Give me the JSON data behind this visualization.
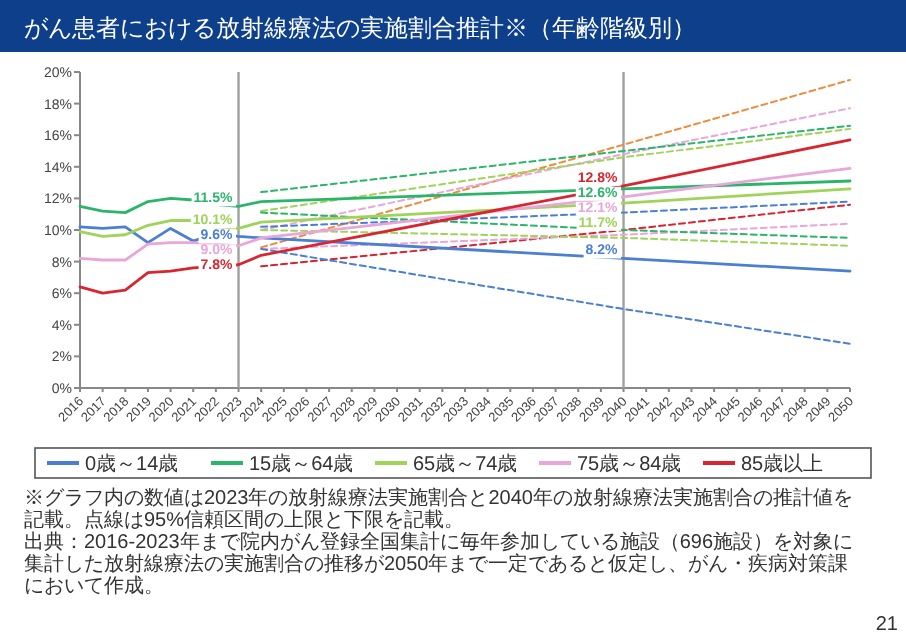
{
  "chart_data": {
    "type": "line",
    "title": "がん患者における放射線療法の実施割合推計※（年齢階級別）",
    "xlim": [
      2016,
      2050
    ],
    "xticks": [
      2016,
      2017,
      2018,
      2019,
      2020,
      2021,
      2022,
      2023,
      2024,
      2025,
      2026,
      2027,
      2028,
      2029,
      2030,
      2031,
      2032,
      2033,
      2034,
      2035,
      2036,
      2037,
      2038,
      2039,
      2040,
      2041,
      2042,
      2043,
      2044,
      2045,
      2046,
      2047,
      2048,
      2049,
      2050
    ],
    "ylim": [
      0,
      20
    ],
    "yticks": [
      {
        "value": 0,
        "label": "0%"
      },
      {
        "value": 2,
        "label": "2%"
      },
      {
        "value": 4,
        "label": "4%"
      },
      {
        "value": 6,
        "label": "6%"
      },
      {
        "value": 8,
        "label": "8%"
      },
      {
        "value": 10,
        "label": "10%"
      },
      {
        "value": 12,
        "label": "12%"
      },
      {
        "value": 14,
        "label": "14%"
      },
      {
        "value": 16,
        "label": "16%"
      },
      {
        "value": 18,
        "label": "18%"
      },
      {
        "value": 20,
        "label": "20%"
      }
    ],
    "legend": "bottom",
    "ref_lines": [
      {
        "axis": "x",
        "value": 2023,
        "color": "#a0a0a0"
      },
      {
        "axis": "x",
        "value": 2040,
        "color": "#a0a0a0"
      }
    ],
    "series": [
      {
        "type": "line",
        "line_style": "dashed",
        "color": "#f08a3c",
        "x": [
          2024,
          2040,
          2050
        ],
        "values": [
          8.9,
          15.4,
          19.5
        ]
      },
      {
        "type": "line",
        "line_style": "dashed",
        "color": "#e9a6d8",
        "x": [
          2024,
          2040,
          2050
        ],
        "values": [
          10.0,
          14.8,
          17.7
        ]
      },
      {
        "type": "line",
        "line_style": "dashed",
        "color": "#2bb56a",
        "x": [
          2024,
          2040,
          2050
        ],
        "values": [
          12.4,
          15.0,
          16.6
        ]
      },
      {
        "type": "line",
        "line_style": "dashed",
        "color": "#9fd35a",
        "x": [
          2024,
          2040,
          2050
        ],
        "values": [
          11.2,
          14.6,
          16.4
        ]
      },
      {
        "type": "line",
        "line_style": "dashed",
        "color": "#4a7fd4",
        "x": [
          2024,
          2040,
          2050
        ],
        "values": [
          10.2,
          11.1,
          11.8
        ]
      },
      {
        "type": "line",
        "line_style": "dashed",
        "color": "#d7262f",
        "x": [
          2024,
          2040,
          2050
        ],
        "values": [
          7.7,
          10.0,
          11.6
        ]
      },
      {
        "type": "line",
        "line_style": "dashed",
        "color": "#e9a6d8",
        "x": [
          2024,
          2040,
          2050
        ],
        "values": [
          8.8,
          9.7,
          10.4
        ]
      },
      {
        "type": "line",
        "line_style": "dashed",
        "color": "#2bb56a",
        "x": [
          2024,
          2040,
          2050
        ],
        "values": [
          11.1,
          10.0,
          9.5
        ]
      },
      {
        "type": "line",
        "line_style": "dashed",
        "color": "#9fd35a",
        "x": [
          2024,
          2040,
          2050
        ],
        "values": [
          10.0,
          9.5,
          9.0
        ]
      },
      {
        "type": "line",
        "line_style": "dashed",
        "color": "#4a7fd4",
        "x": [
          2024,
          2040,
          2050
        ],
        "values": [
          8.8,
          5.0,
          2.8
        ]
      },
      {
        "name": "0歳～14歳",
        "line_style": "solid",
        "color": "#4a7fd4",
        "x": [
          2016,
          2017,
          2018,
          2019,
          2020,
          2021,
          2022,
          2023,
          2024,
          2040,
          2050
        ],
        "values": [
          10.2,
          10.1,
          10.2,
          9.2,
          10.1,
          9.3,
          9.8,
          9.6,
          9.5,
          8.2,
          7.4
        ],
        "value_labels": [
          null,
          null,
          null,
          null,
          null,
          null,
          null,
          "9.6%",
          null,
          "8.2%",
          null
        ]
      },
      {
        "name": "15歳～64歳",
        "line_style": "solid",
        "color": "#2bb56a",
        "x": [
          2016,
          2017,
          2018,
          2019,
          2020,
          2021,
          2022,
          2023,
          2024,
          2040,
          2050
        ],
        "values": [
          11.5,
          11.2,
          11.1,
          11.8,
          12.0,
          11.9,
          11.6,
          11.5,
          11.8,
          12.6,
          13.1
        ],
        "value_labels": [
          null,
          null,
          null,
          null,
          null,
          null,
          null,
          "11.5%",
          null,
          "12.6%",
          null
        ]
      },
      {
        "name": "65歳～74歳",
        "line_style": "solid",
        "color": "#9fd35a",
        "x": [
          2016,
          2017,
          2018,
          2019,
          2020,
          2021,
          2022,
          2023,
          2024,
          2040,
          2050
        ],
        "values": [
          9.9,
          9.6,
          9.7,
          10.3,
          10.6,
          10.6,
          10.2,
          10.1,
          10.5,
          11.7,
          12.6
        ],
        "value_labels": [
          null,
          null,
          null,
          null,
          null,
          null,
          null,
          "10.1%",
          null,
          "11.7%",
          null
        ]
      },
      {
        "name": "75歳～84歳",
        "line_style": "solid",
        "color": "#e9a6d8",
        "x": [
          2016,
          2017,
          2018,
          2019,
          2020,
          2021,
          2022,
          2023,
          2024,
          2040,
          2050
        ],
        "values": [
          8.2,
          8.1,
          8.1,
          9.1,
          9.2,
          9.2,
          9.1,
          9.0,
          9.5,
          12.1,
          13.9
        ],
        "value_labels": [
          null,
          null,
          null,
          null,
          null,
          null,
          null,
          "9.0%",
          null,
          "12.1%",
          null
        ]
      },
      {
        "name": "85歳以上",
        "line_style": "solid",
        "color": "#d7262f",
        "x": [
          2016,
          2017,
          2018,
          2019,
          2020,
          2021,
          2022,
          2023,
          2024,
          2040,
          2050
        ],
        "values": [
          6.4,
          6.0,
          6.2,
          7.3,
          7.4,
          7.6,
          7.7,
          7.8,
          8.4,
          12.8,
          15.7
        ],
        "value_labels": [
          null,
          null,
          null,
          null,
          null,
          null,
          null,
          "7.8%",
          null,
          "12.8%",
          null
        ]
      }
    ],
    "annotations": [
      "※グラフ内の数値は2023年の放射線療法実施割合と2040年の放射線療法実施割合の推計値を記載。点線は95%信頼区間の上限と下限を記載。",
      "出典：2016-2023年まで院内がん登録全国集計に毎年参加している施設（696施設）を対象に集計した放射線療法の実施割合の推移が2050年まで一定であると仮定し、がん・疾病対策課において作成。",
      "21"
    ]
  }
}
